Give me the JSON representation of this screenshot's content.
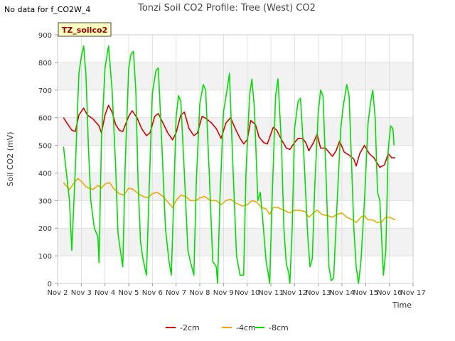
{
  "no_data_text": "No data for f_CO2W_4",
  "chart_data": {
    "type": "line",
    "title": "Tonzi Soil CO2 Profile: Tree (West) CO2",
    "xlabel": "Time",
    "ylabel": "Soil CO2 (mV)",
    "xlim": [
      2,
      17
    ],
    "ylim": [
      0,
      900
    ],
    "x_ticks": [
      2,
      3,
      4,
      5,
      6,
      7,
      8,
      9,
      10,
      11,
      12,
      13,
      14,
      15,
      16,
      17
    ],
    "x_tick_labels": [
      "Nov 2",
      "Nov 3",
      "Nov 4",
      "Nov 5",
      "Nov 6",
      "Nov 7",
      "Nov 8",
      "Nov 9",
      "Nov 10",
      "Nov 11",
      "Nov 12",
      "Nov 13",
      "Nov 14",
      "Nov 15",
      "Nov 16",
      "Nov 17"
    ],
    "y_ticks": [
      0,
      100,
      200,
      300,
      400,
      500,
      600,
      700,
      800,
      900
    ],
    "y_tick_labels": [
      "0",
      "100",
      "200",
      "300",
      "400",
      "500",
      "600",
      "700",
      "800",
      "900"
    ],
    "grid": true,
    "legend_position": "bottom-center",
    "annotation_box": "TZ_soilco2",
    "series": [
      {
        "name": "-2cm",
        "color": "#dd0000",
        "points": [
          [
            2.25,
            600
          ],
          [
            2.4,
            580
          ],
          [
            2.6,
            555
          ],
          [
            2.75,
            550
          ],
          [
            2.9,
            610
          ],
          [
            3.1,
            635
          ],
          [
            3.25,
            610
          ],
          [
            3.5,
            595
          ],
          [
            3.75,
            570
          ],
          [
            3.85,
            545
          ],
          [
            4.0,
            610
          ],
          [
            4.15,
            645
          ],
          [
            4.3,
            620
          ],
          [
            4.45,
            575
          ],
          [
            4.6,
            555
          ],
          [
            4.75,
            550
          ],
          [
            5.0,
            605
          ],
          [
            5.15,
            625
          ],
          [
            5.35,
            600
          ],
          [
            5.55,
            560
          ],
          [
            5.75,
            535
          ],
          [
            5.9,
            545
          ],
          [
            6.1,
            605
          ],
          [
            6.25,
            615
          ],
          [
            6.45,
            580
          ],
          [
            6.65,
            545
          ],
          [
            6.85,
            520
          ],
          [
            7.0,
            545
          ],
          [
            7.2,
            610
          ],
          [
            7.35,
            620
          ],
          [
            7.55,
            560
          ],
          [
            7.75,
            535
          ],
          [
            7.9,
            545
          ],
          [
            8.1,
            605
          ],
          [
            8.3,
            595
          ],
          [
            8.5,
            580
          ],
          [
            8.7,
            560
          ],
          [
            8.9,
            525
          ],
          [
            9.1,
            580
          ],
          [
            9.3,
            600
          ],
          [
            9.5,
            560
          ],
          [
            9.7,
            525
          ],
          [
            9.85,
            505
          ],
          [
            10.0,
            520
          ],
          [
            10.15,
            590
          ],
          [
            10.35,
            575
          ],
          [
            10.5,
            530
          ],
          [
            10.7,
            510
          ],
          [
            10.85,
            505
          ],
          [
            11.1,
            565
          ],
          [
            11.25,
            555
          ],
          [
            11.45,
            520
          ],
          [
            11.65,
            490
          ],
          [
            11.8,
            485
          ],
          [
            12.0,
            510
          ],
          [
            12.15,
            525
          ],
          [
            12.35,
            525
          ],
          [
            12.5,
            505
          ],
          [
            12.6,
            480
          ],
          [
            12.8,
            510
          ],
          [
            12.95,
            540
          ],
          [
            13.1,
            490
          ],
          [
            13.3,
            490
          ],
          [
            13.45,
            475
          ],
          [
            13.6,
            460
          ],
          [
            13.75,
            480
          ],
          [
            13.9,
            515
          ],
          [
            14.1,
            475
          ],
          [
            14.3,
            465
          ],
          [
            14.5,
            450
          ],
          [
            14.6,
            425
          ],
          [
            14.75,
            470
          ],
          [
            14.95,
            500
          ],
          [
            15.15,
            470
          ],
          [
            15.35,
            455
          ],
          [
            15.6,
            420
          ],
          [
            15.8,
            430
          ],
          [
            15.95,
            470
          ],
          [
            16.1,
            455
          ],
          [
            16.25,
            455
          ]
        ]
      },
      {
        "name": "-4cm",
        "color": "#f0a800",
        "points": [
          [
            2.25,
            365
          ],
          [
            2.5,
            340
          ],
          [
            2.75,
            370
          ],
          [
            2.85,
            380
          ],
          [
            3.0,
            370
          ],
          [
            3.2,
            350
          ],
          [
            3.5,
            340
          ],
          [
            3.7,
            355
          ],
          [
            3.85,
            345
          ],
          [
            4.0,
            360
          ],
          [
            4.2,
            365
          ],
          [
            4.35,
            345
          ],
          [
            4.6,
            325
          ],
          [
            4.8,
            320
          ],
          [
            5.0,
            345
          ],
          [
            5.2,
            340
          ],
          [
            5.4,
            325
          ],
          [
            5.6,
            315
          ],
          [
            5.8,
            310
          ],
          [
            6.0,
            325
          ],
          [
            6.2,
            330
          ],
          [
            6.45,
            315
          ],
          [
            6.7,
            290
          ],
          [
            6.85,
            275
          ],
          [
            7.0,
            300
          ],
          [
            7.2,
            320
          ],
          [
            7.4,
            315
          ],
          [
            7.6,
            300
          ],
          [
            7.85,
            300
          ],
          [
            8.0,
            310
          ],
          [
            8.2,
            315
          ],
          [
            8.45,
            300
          ],
          [
            8.7,
            300
          ],
          [
            8.9,
            285
          ],
          [
            9.1,
            300
          ],
          [
            9.3,
            305
          ],
          [
            9.55,
            290
          ],
          [
            9.8,
            280
          ],
          [
            10.0,
            285
          ],
          [
            10.2,
            300
          ],
          [
            10.4,
            295
          ],
          [
            10.6,
            275
          ],
          [
            10.8,
            270
          ],
          [
            10.95,
            250
          ],
          [
            11.1,
            275
          ],
          [
            11.3,
            275
          ],
          [
            11.55,
            265
          ],
          [
            11.8,
            255
          ],
          [
            12.0,
            265
          ],
          [
            12.2,
            265
          ],
          [
            12.45,
            260
          ],
          [
            12.6,
            240
          ],
          [
            12.8,
            255
          ],
          [
            12.95,
            265
          ],
          [
            13.15,
            250
          ],
          [
            13.4,
            245
          ],
          [
            13.6,
            240
          ],
          [
            13.8,
            250
          ],
          [
            14.0,
            255
          ],
          [
            14.2,
            240
          ],
          [
            14.45,
            230
          ],
          [
            14.6,
            220
          ],
          [
            14.8,
            240
          ],
          [
            14.95,
            245
          ],
          [
            15.1,
            230
          ],
          [
            15.3,
            230
          ],
          [
            15.5,
            220
          ],
          [
            15.7,
            225
          ],
          [
            15.85,
            240
          ],
          [
            16.0,
            240
          ],
          [
            16.25,
            230
          ]
        ]
      },
      {
        "name": "-8cm",
        "color": "#00e000",
        "points": [
          [
            2.25,
            495
          ],
          [
            2.4,
            380
          ],
          [
            2.5,
            300
          ],
          [
            2.6,
            120
          ],
          [
            2.75,
            420
          ],
          [
            2.9,
            760
          ],
          [
            3.0,
            820
          ],
          [
            3.1,
            860
          ],
          [
            3.2,
            750
          ],
          [
            3.3,
            500
          ],
          [
            3.4,
            300
          ],
          [
            3.55,
            200
          ],
          [
            3.7,
            170
          ],
          [
            3.75,
            75
          ],
          [
            3.85,
            520
          ],
          [
            4.0,
            780
          ],
          [
            4.15,
            860
          ],
          [
            4.3,
            700
          ],
          [
            4.45,
            420
          ],
          [
            4.55,
            180
          ],
          [
            4.65,
            120
          ],
          [
            4.75,
            60
          ],
          [
            4.85,
            420
          ],
          [
            5.0,
            780
          ],
          [
            5.1,
            830
          ],
          [
            5.2,
            840
          ],
          [
            5.3,
            700
          ],
          [
            5.4,
            360
          ],
          [
            5.5,
            150
          ],
          [
            5.6,
            90
          ],
          [
            5.75,
            30
          ],
          [
            5.85,
            300
          ],
          [
            6.0,
            690
          ],
          [
            6.15,
            770
          ],
          [
            6.25,
            780
          ],
          [
            6.4,
            500
          ],
          [
            6.55,
            200
          ],
          [
            6.7,
            80
          ],
          [
            6.8,
            30
          ],
          [
            6.9,
            300
          ],
          [
            7.0,
            600
          ],
          [
            7.1,
            680
          ],
          [
            7.2,
            660
          ],
          [
            7.35,
            400
          ],
          [
            7.5,
            120
          ],
          [
            7.6,
            80
          ],
          [
            7.75,
            30
          ],
          [
            7.85,
            360
          ],
          [
            8.0,
            650
          ],
          [
            8.15,
            720
          ],
          [
            8.25,
            700
          ],
          [
            8.4,
            400
          ],
          [
            8.55,
            80
          ],
          [
            8.7,
            60
          ],
          [
            8.75,
            0
          ],
          [
            8.85,
            300
          ],
          [
            9.0,
            620
          ],
          [
            9.15,
            700
          ],
          [
            9.25,
            760
          ],
          [
            9.4,
            420
          ],
          [
            9.55,
            100
          ],
          [
            9.7,
            30
          ],
          [
            9.85,
            30
          ],
          [
            9.95,
            400
          ],
          [
            10.1,
            680
          ],
          [
            10.2,
            740
          ],
          [
            10.3,
            640
          ],
          [
            10.45,
            300
          ],
          [
            10.55,
            330
          ],
          [
            10.65,
            240
          ],
          [
            10.8,
            80
          ],
          [
            10.9,
            30
          ],
          [
            10.95,
            0
          ],
          [
            11.05,
            300
          ],
          [
            11.2,
            680
          ],
          [
            11.3,
            740
          ],
          [
            11.45,
            500
          ],
          [
            11.55,
            200
          ],
          [
            11.65,
            70
          ],
          [
            11.75,
            40
          ],
          [
            11.8,
            0
          ],
          [
            11.9,
            200
          ],
          [
            12.0,
            560
          ],
          [
            12.15,
            660
          ],
          [
            12.25,
            670
          ],
          [
            12.4,
            450
          ],
          [
            12.55,
            180
          ],
          [
            12.65,
            60
          ],
          [
            12.75,
            90
          ],
          [
            12.85,
            350
          ],
          [
            13.0,
            620
          ],
          [
            13.1,
            700
          ],
          [
            13.2,
            680
          ],
          [
            13.35,
            340
          ],
          [
            13.45,
            60
          ],
          [
            13.55,
            10
          ],
          [
            13.65,
            20
          ],
          [
            13.8,
            300
          ],
          [
            13.95,
            560
          ],
          [
            14.05,
            640
          ],
          [
            14.2,
            720
          ],
          [
            14.3,
            680
          ],
          [
            14.4,
            450
          ],
          [
            14.5,
            200
          ],
          [
            14.6,
            60
          ],
          [
            14.7,
            0
          ],
          [
            14.8,
            80
          ],
          [
            14.95,
            300
          ],
          [
            15.1,
            580
          ],
          [
            15.2,
            650
          ],
          [
            15.3,
            700
          ],
          [
            15.4,
            600
          ],
          [
            15.5,
            330
          ],
          [
            15.6,
            300
          ],
          [
            15.75,
            30
          ],
          [
            15.85,
            120
          ],
          [
            15.95,
            480
          ],
          [
            16.05,
            570
          ],
          [
            16.15,
            560
          ],
          [
            16.2,
            500
          ]
        ]
      }
    ]
  }
}
